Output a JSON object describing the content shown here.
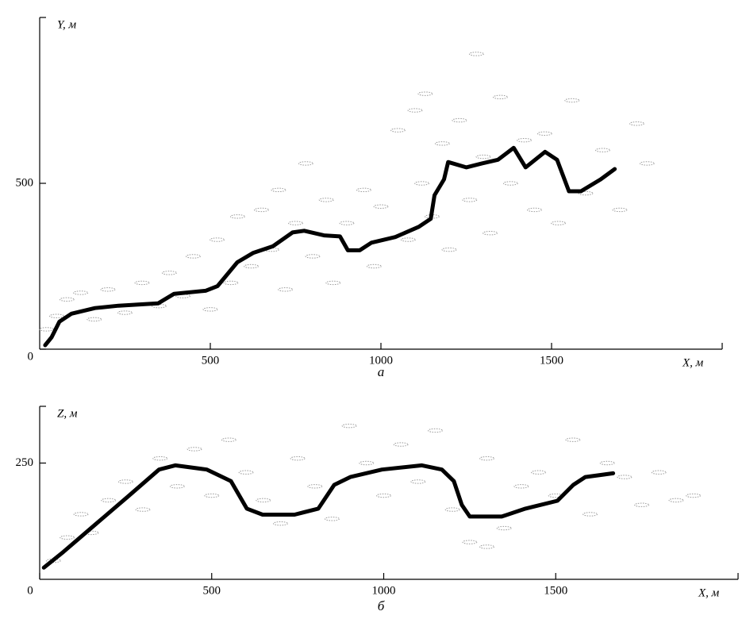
{
  "chart_data": [
    {
      "type": "line",
      "y_label": "Y, м",
      "x_label": "X, м",
      "label": "а",
      "xlim": [
        0,
        2000
      ],
      "ylim": [
        0,
        1000
      ],
      "xticks": [
        500,
        1000,
        1500
      ],
      "yticks": [
        0,
        500
      ],
      "series": [
        {
          "type": "scatter",
          "color": "#9a9a9a",
          "x": [
            20,
            50,
            80,
            120,
            160,
            200,
            250,
            300,
            350,
            380,
            420,
            450,
            500,
            520,
            560,
            580,
            620,
            650,
            680,
            700,
            720,
            750,
            780,
            800,
            840,
            860,
            900,
            950,
            980,
            1000,
            1050,
            1080,
            1100,
            1120,
            1150,
            1180,
            1200,
            1230,
            1260,
            1300,
            1320,
            1350,
            1380,
            1420,
            1450,
            1480,
            1520,
            1560,
            1600,
            1650,
            1700,
            1750,
            1780,
            1280,
            1130
          ],
          "values": [
            60,
            100,
            150,
            170,
            90,
            180,
            110,
            200,
            130,
            230,
            160,
            280,
            120,
            330,
            200,
            400,
            250,
            420,
            300,
            480,
            180,
            380,
            560,
            280,
            450,
            200,
            380,
            480,
            250,
            430,
            660,
            330,
            720,
            500,
            400,
            620,
            300,
            690,
            450,
            580,
            350,
            760,
            500,
            630,
            420,
            650,
            380,
            750,
            470,
            600,
            420,
            680,
            560,
            890,
            770
          ]
        },
        {
          "type": "line",
          "color": "#000000",
          "x": [
            16,
            35,
            58,
            93,
            162,
            231,
            347,
            394,
            486,
            521,
            579,
            625,
            683,
            741,
            775,
            833,
            880,
            903,
            938,
            972,
            1042,
            1111,
            1146,
            1157,
            1185,
            1197,
            1250,
            1296,
            1343,
            1389,
            1424,
            1481,
            1516,
            1551,
            1586,
            1644,
            1685
          ],
          "values": [
            12,
            36,
            83,
            107,
            124,
            131,
            138,
            167,
            176,
            190,
            262,
            290,
            310,
            352,
            357,
            343,
            340,
            298,
            298,
            321,
            338,
            369,
            393,
            464,
            512,
            564,
            548,
            560,
            571,
            607,
            548,
            595,
            571,
            476,
            476,
            512,
            543
          ]
        }
      ]
    },
    {
      "type": "line",
      "y_label": "Z, м",
      "x_label": "X, м",
      "label": "б",
      "xlim": [
        0,
        2030
      ],
      "ylim": [
        0,
        372
      ],
      "xticks": [
        0,
        500,
        1000,
        1500
      ],
      "yticks": [
        250
      ],
      "series": [
        {
          "type": "scatter",
          "color": "#9a9a9a",
          "x": [
            40,
            80,
            120,
            150,
            200,
            250,
            300,
            350,
            400,
            450,
            500,
            550,
            600,
            650,
            700,
            750,
            800,
            850,
            900,
            950,
            1000,
            1050,
            1100,
            1150,
            1200,
            1250,
            1300,
            1350,
            1400,
            1450,
            1500,
            1550,
            1600,
            1650,
            1700,
            1750,
            1800,
            1850,
            1900,
            1300
          ],
          "values": [
            40,
            90,
            140,
            100,
            170,
            210,
            150,
            260,
            200,
            280,
            180,
            300,
            230,
            170,
            120,
            260,
            200,
            130,
            330,
            250,
            180,
            290,
            210,
            320,
            150,
            80,
            260,
            110,
            200,
            230,
            180,
            300,
            140,
            250,
            220,
            160,
            230,
            170,
            180,
            70
          ]
        },
        {
          "type": "line",
          "color": "#000000",
          "x": [
            12,
            69,
            162,
            255,
            347,
            394,
            486,
            556,
            602,
            648,
            741,
            810,
            856,
            903,
            995,
            1111,
            1169,
            1204,
            1227,
            1250,
            1343,
            1412,
            1505,
            1551,
            1586,
            1667
          ],
          "values": [
            25,
            59,
            118,
            177,
            236,
            245,
            236,
            211,
            152,
            139,
            139,
            152,
            203,
            220,
            236,
            245,
            236,
            211,
            160,
            135,
            135,
            152,
            169,
            203,
            220,
            228
          ]
        }
      ]
    }
  ]
}
